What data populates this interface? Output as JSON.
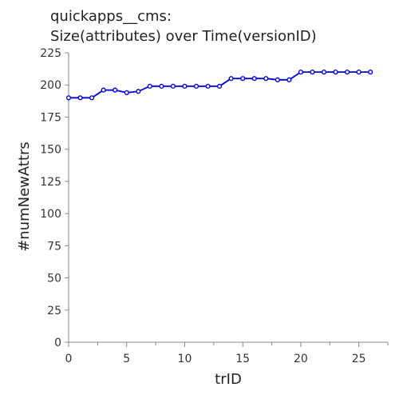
{
  "colors": {
    "series": "#0000dd",
    "axis": "#888888",
    "text": "#222222"
  },
  "chart_data": {
    "type": "line",
    "title": [
      "quickapps__cms:",
      "Size(attributes) over Time(versionID)"
    ],
    "xlabel": "trID",
    "ylabel": "#numNewAttrs",
    "xlim": [
      0,
      27.5
    ],
    "ylim": [
      0,
      225
    ],
    "xticks": [
      0,
      5,
      10,
      15,
      20,
      25
    ],
    "yticks": [
      0,
      25,
      50,
      75,
      100,
      125,
      150,
      175,
      200,
      225
    ],
    "grid": false,
    "series": [
      {
        "x": [
          0,
          1,
          2,
          3,
          4,
          5,
          6,
          7,
          8,
          9,
          10,
          11,
          12,
          13,
          14,
          15,
          16,
          17,
          18,
          19,
          20,
          21,
          22,
          23,
          24,
          25,
          26
        ],
        "y": [
          190,
          190,
          190,
          196,
          196,
          194,
          195,
          199,
          199,
          199,
          199,
          199,
          199,
          199,
          205,
          205,
          205,
          205,
          204,
          204,
          210,
          210,
          210,
          210,
          210,
          210,
          210
        ]
      }
    ]
  }
}
